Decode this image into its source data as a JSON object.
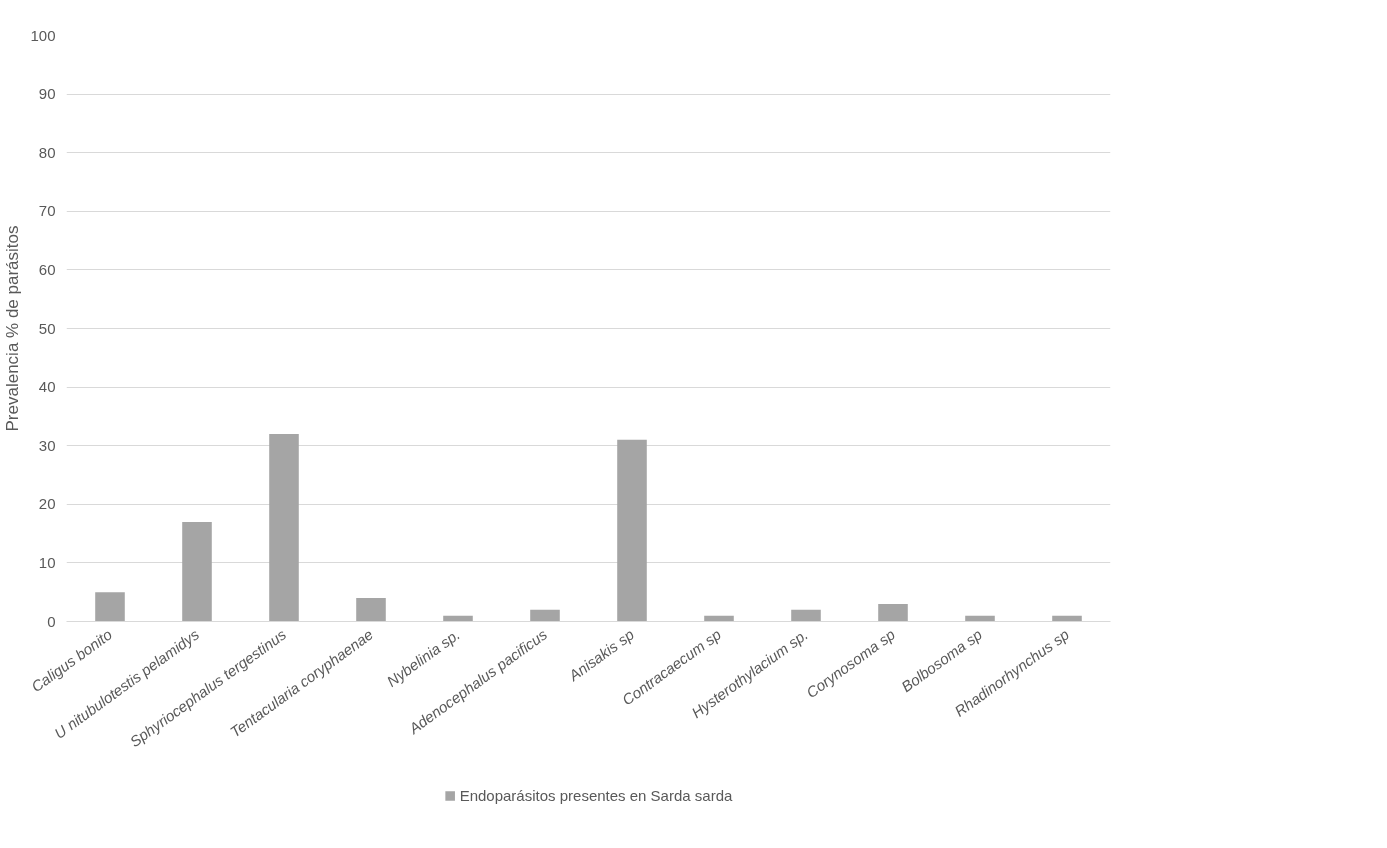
{
  "chart_data": {
    "type": "bar",
    "ylabel": "Prevalencia % de parásitos",
    "categories": [
      "Caligus bonito",
      "U nitubulotestis pelamidys",
      "Sphyriocephalus tergestinus",
      "Tentacularia coryphaenae",
      "Nybelinia sp.",
      "Adenocephalus pacificus",
      "Anisakis sp",
      "Contracaecum sp",
      "Hysterothylacium sp.",
      "Corynosoma sp",
      "Bolbosoma sp",
      "Rhadinorhynchus sp"
    ],
    "series": [
      {
        "name": "Endoparásitos presentes en Sarda sarda",
        "color": "#a5a5a5",
        "values": [
          5,
          17,
          32,
          4,
          1,
          2,
          31,
          1,
          2,
          3,
          1,
          1
        ]
      }
    ],
    "ylim": [
      0,
      100
    ],
    "yticks": [
      0,
      10,
      20,
      30,
      40,
      50,
      60,
      70,
      80,
      90,
      100
    ],
    "grid": "y",
    "legend": "bottom"
  }
}
